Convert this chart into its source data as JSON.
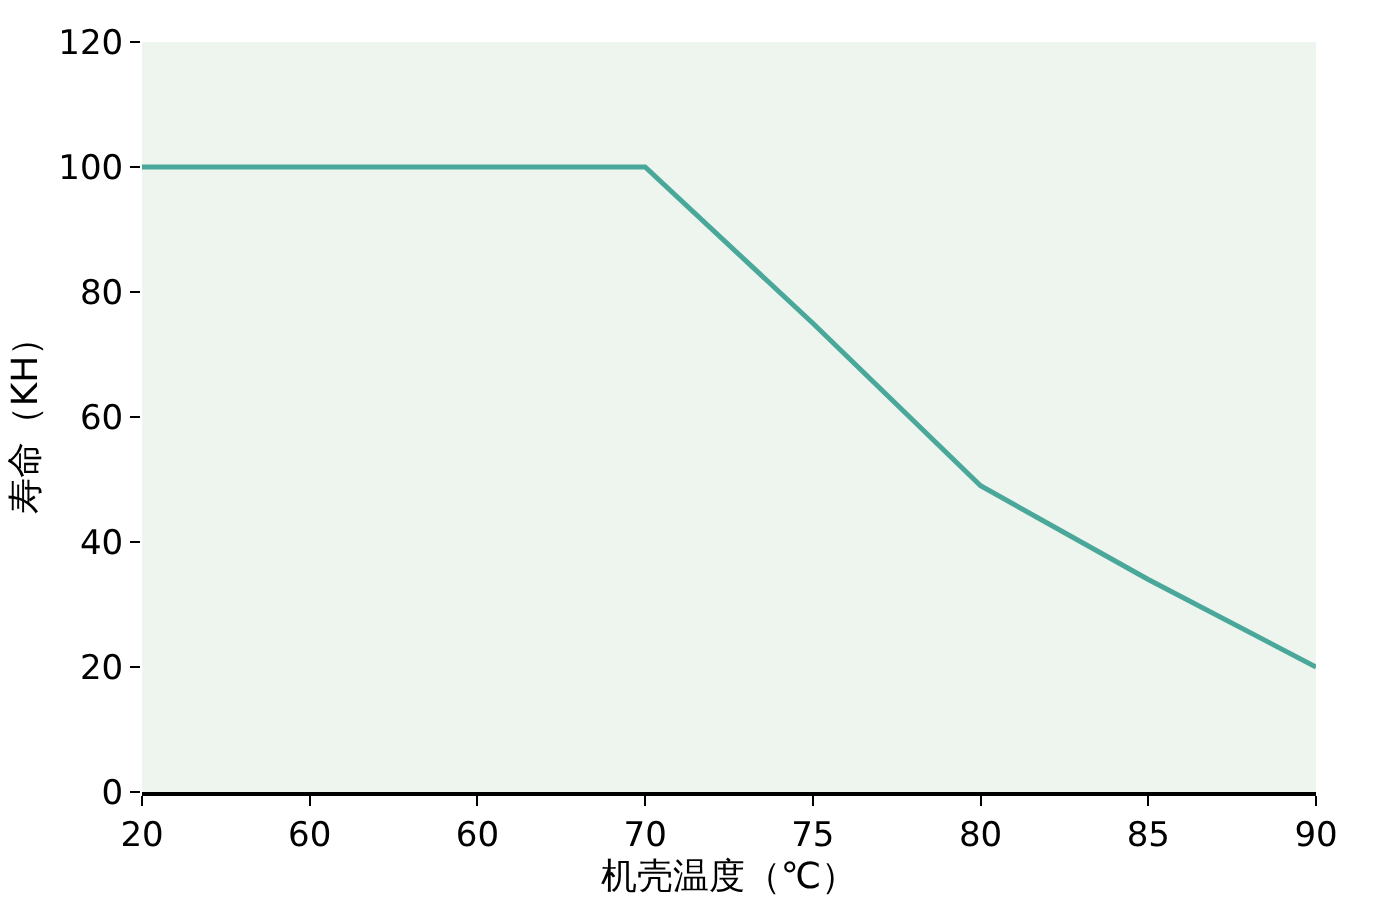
{
  "chart_data": {
    "type": "line",
    "xlabel": "机壳温度（℃）",
    "ylabel": "寿命（KH）",
    "categories": [
      "20",
      "60",
      "60",
      "70",
      "75",
      "80",
      "85",
      "90"
    ],
    "series": [
      {
        "color": "#4aa89a",
        "values": [
          100,
          100,
          100,
          100,
          75,
          49,
          34,
          20
        ]
      }
    ],
    "ylim": [
      0,
      120
    ],
    "yticks": [
      0,
      20,
      40,
      60,
      80,
      100,
      120
    ],
    "grid": false,
    "marker": "none",
    "line_style": "solid"
  }
}
